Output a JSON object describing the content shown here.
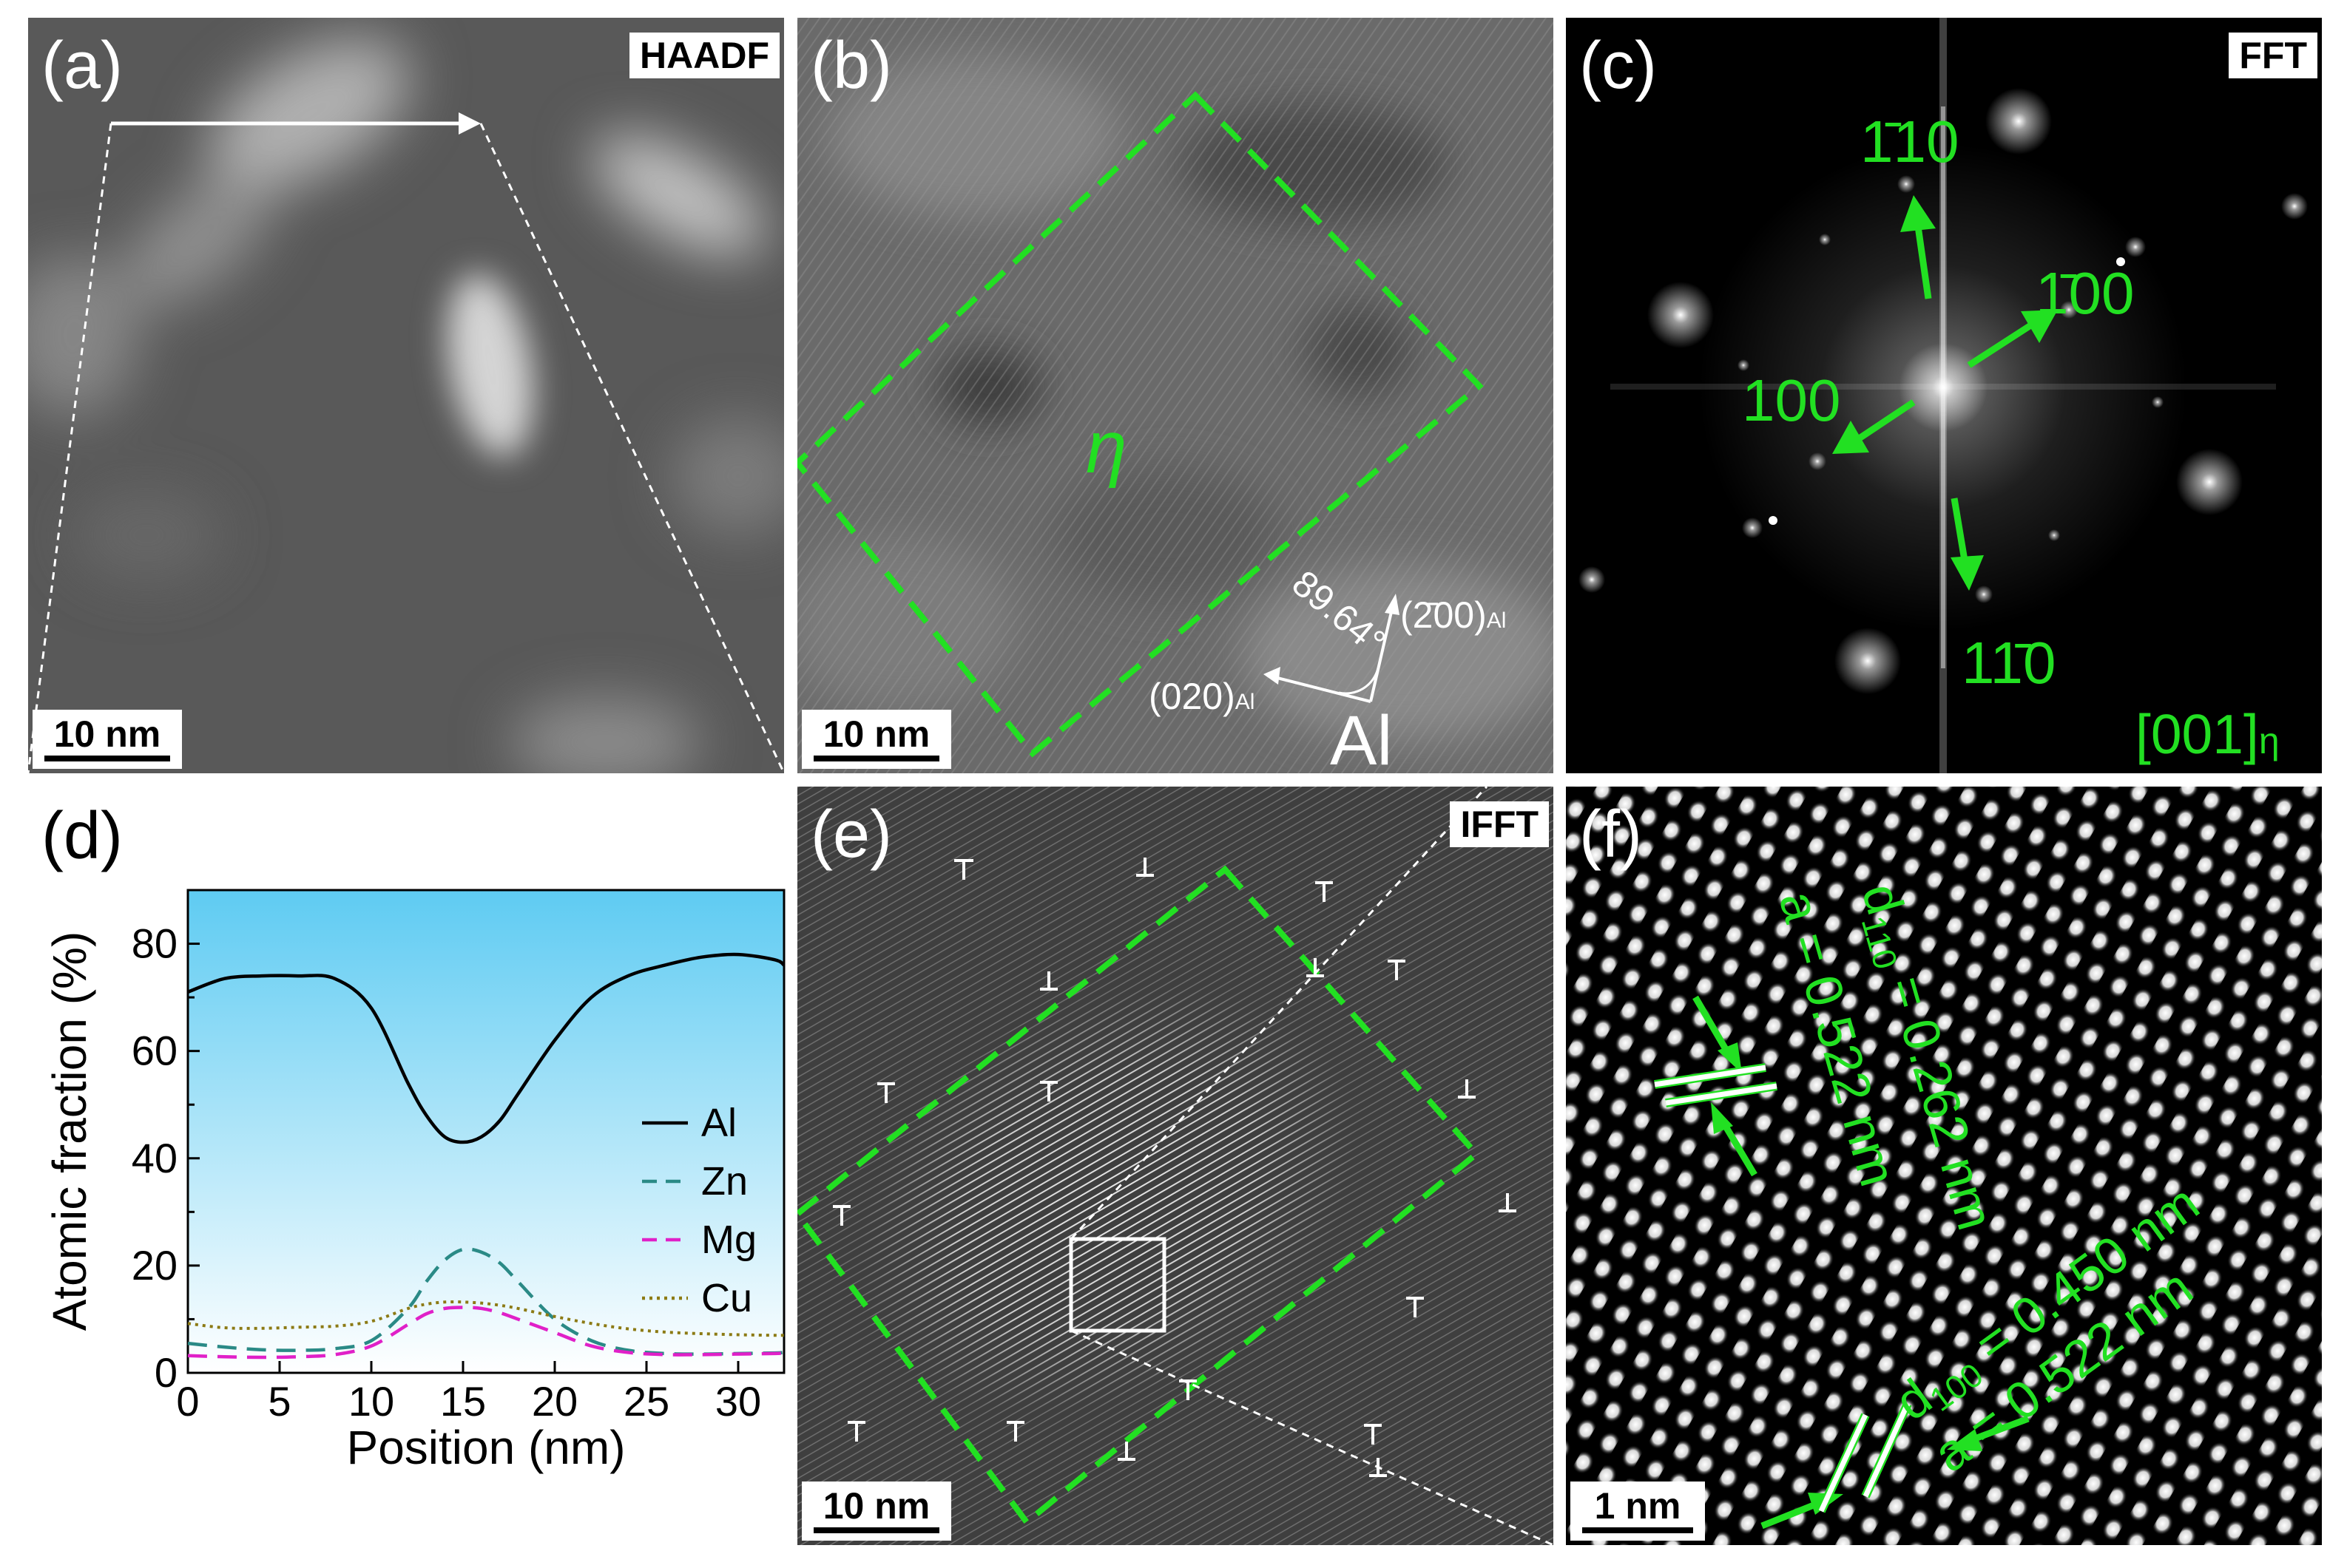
{
  "panels": {
    "a": {
      "label": "(a)",
      "tag": "HAADF",
      "scale": "10 nm"
    },
    "b": {
      "label": "(b)",
      "scale": "10 nm",
      "phase_label": "η",
      "angle_label": "89.64°",
      "plane_200": "(2̄00)",
      "plane_200_sub": "Al",
      "plane_020": "(020)",
      "plane_020_sub": "Al",
      "matrix_label": "Al"
    },
    "c": {
      "label": "(c)",
      "tag": "FFT",
      "spot_m110": "1̄10",
      "spot_m100": "1̄00",
      "spot_100": "100",
      "spot_1m10": "11̄0",
      "zone_axis": "[001]",
      "zone_sub": "η"
    },
    "d": {
      "label": "(d)"
    },
    "e": {
      "label": "(e)",
      "tag": "IFFT",
      "scale": "10 nm"
    },
    "f": {
      "label": "(f)",
      "scale": "1 nm",
      "d110": "d",
      "d110_sub": "110",
      "d110_val": " = 0.262 nm",
      "a_left": "a = 0.522 nm",
      "d100": "d",
      "d100_sub": "100",
      "d100_val": " = 0.450 nm",
      "a_right": "a = 0.522 nm"
    }
  },
  "colors": {
    "green": "#22e022",
    "al": "#000000",
    "zn": "#2a8a86",
    "mg": "#e020c8",
    "cu": "#8c7a14",
    "sky_top": "#5ecbf2",
    "sky_bottom": "#ffffff"
  },
  "chart_data": {
    "type": "line",
    "xlabel": "Position (nm)",
    "ylabel": "Atomic fraction (%)",
    "xlim": [
      0,
      32.5
    ],
    "ylim": [
      0,
      90
    ],
    "xticks": [
      0,
      5,
      10,
      15,
      20,
      25,
      30
    ],
    "yticks": [
      0,
      20,
      40,
      60,
      80
    ],
    "legend_position": "right",
    "x": [
      0,
      2,
      4,
      6,
      8,
      10,
      12,
      13,
      14,
      15,
      16,
      17,
      18,
      20,
      22,
      24,
      26,
      28,
      30,
      32,
      32.5
    ],
    "series": [
      {
        "name": "Al",
        "style": "solid",
        "values": [
          71,
          73.5,
          74,
          74,
          73.5,
          68,
          54,
          48,
          44,
          43,
          44,
          47,
          52,
          62,
          70,
          74,
          76,
          77.5,
          78,
          77,
          76
        ]
      },
      {
        "name": "Zn",
        "style": "dashed",
        "values": [
          5.5,
          4.8,
          4.3,
          4.2,
          4.5,
          6,
          12,
          17,
          21,
          23,
          22.5,
          20.5,
          17,
          10,
          6,
          4.2,
          3.6,
          3.5,
          3.6,
          3.7,
          3.8
        ]
      },
      {
        "name": "Mg",
        "style": "dashed",
        "values": [
          3.2,
          3.0,
          2.9,
          3.0,
          3.4,
          5,
          9,
          11,
          12,
          12.2,
          12,
          11.2,
          10,
          7.5,
          5,
          3.8,
          3.4,
          3.4,
          3.5,
          3.6,
          3.7
        ]
      },
      {
        "name": "Cu",
        "style": "dotted",
        "values": [
          9.2,
          8.4,
          8.3,
          8.5,
          8.7,
          9.6,
          12,
          12.8,
          13.2,
          13.2,
          13,
          12.6,
          12,
          10.5,
          9.2,
          8.2,
          7.6,
          7.3,
          7.1,
          7.0,
          7.0
        ]
      }
    ]
  }
}
